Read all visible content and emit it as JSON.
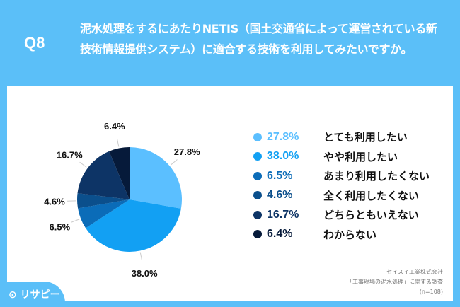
{
  "header": {
    "question_no": "Q8",
    "question": "泥水処理をするにあたりNETIS（国土交通省によって運営されている新技術情報提供システム）に適合する技術を利用してみたいですか。"
  },
  "chart_data": {
    "type": "pie",
    "start": "top, clockwise",
    "categories": [
      "とても利用したい",
      "やや利用したい",
      "あまり利用したくない",
      "全く利用したくない",
      "どちらともいえない",
      "わからない"
    ],
    "values": [
      27.8,
      38.0,
      6.5,
      4.6,
      16.7,
      6.4
    ],
    "data_labels": [
      "27.8%",
      "38.0%",
      "6.5%",
      "4.6%",
      "16.7%",
      "6.4%"
    ],
    "colors": [
      "#5bbfff",
      "#12a0f3",
      "#0b6cb8",
      "#0b4f8c",
      "#0d3466",
      "#061a3a"
    ],
    "legend_placement": "right"
  },
  "source": {
    "company": "セイスイ工業株式会社",
    "survey": "「工事現場の泥水処理」に関する調査",
    "n": "(n=108)"
  },
  "logo": "リサピー"
}
